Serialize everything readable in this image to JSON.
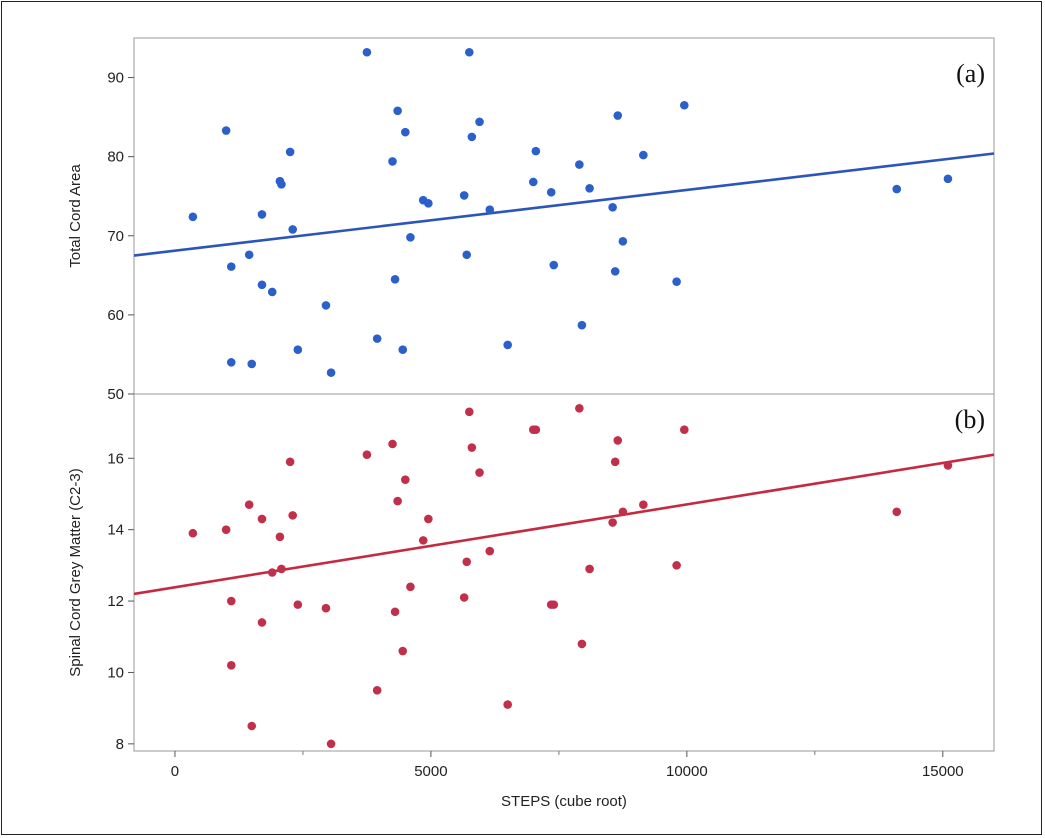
{
  "chart_data": [
    {
      "type": "scatter",
      "panel_label": "(a)",
      "ylabel": "Total Cord Area",
      "xlabel": "",
      "xlim": [
        -800,
        16000
      ],
      "ylim": [
        50,
        95
      ],
      "yticks": [
        50,
        60,
        70,
        80,
        90
      ],
      "marker_color": "#2b5fc9",
      "line_color": "#2b55b8",
      "fit": {
        "x": [
          -800,
          16000
        ],
        "y": [
          67.5,
          80.4
        ]
      },
      "x": [
        350,
        1000,
        1100,
        1100,
        1450,
        1500,
        1700,
        1700,
        1900,
        2050,
        2080,
        2250,
        2300,
        2400,
        2950,
        3050,
        3750,
        3950,
        4250,
        4300,
        4350,
        4450,
        4500,
        4600,
        4850,
        4950,
        5650,
        5700,
        5750,
        5800,
        5950,
        6150,
        6500,
        7000,
        7050,
        7350,
        7400,
        7900,
        7950,
        8100,
        8550,
        8600,
        8650,
        8750,
        9150,
        9800,
        9950,
        14100,
        15100
      ],
      "y": [
        72.4,
        83.3,
        66.1,
        54.0,
        67.6,
        53.8,
        72.7,
        63.8,
        62.9,
        76.9,
        76.5,
        80.6,
        70.8,
        55.6,
        61.2,
        52.7,
        93.2,
        57.0,
        79.4,
        64.5,
        85.8,
        55.6,
        83.1,
        69.8,
        74.5,
        74.1,
        75.1,
        67.6,
        93.2,
        82.5,
        84.4,
        73.3,
        56.2,
        76.8,
        80.7,
        75.5,
        66.3,
        79.0,
        58.7,
        76.0,
        73.6,
        65.5,
        85.2,
        69.3,
        80.2,
        64.2,
        86.5,
        75.9,
        77.2
      ]
    },
    {
      "type": "scatter",
      "panel_label": "(b)",
      "ylabel": "Spinal Cord Grey Matter (C2-3)",
      "xlabel": "STEPS (cube root)",
      "xlim": [
        -800,
        16000
      ],
      "ylim": [
        7.8,
        17.8
      ],
      "yticks": [
        8,
        10,
        12,
        14,
        16
      ],
      "xticks": [
        0,
        5000,
        10000,
        15000
      ],
      "marker_color": "#c0304a",
      "line_color": "#c42a42",
      "fit": {
        "x": [
          -800,
          16000
        ],
        "y": [
          12.2,
          16.1
        ]
      },
      "x": [
        350,
        1000,
        1100,
        1100,
        1450,
        1500,
        1700,
        1700,
        1900,
        2050,
        2080,
        2250,
        2300,
        2400,
        2950,
        3050,
        3750,
        3950,
        4250,
        4300,
        4350,
        4450,
        4500,
        4600,
        4850,
        4950,
        5650,
        5700,
        5750,
        5800,
        5950,
        6150,
        6500,
        7000,
        7050,
        7350,
        7400,
        7900,
        7950,
        8100,
        8550,
        8600,
        8650,
        8750,
        9150,
        9800,
        9950,
        14100,
        15100
      ],
      "y": [
        13.9,
        14.0,
        12.0,
        10.2,
        14.7,
        8.5,
        14.3,
        11.4,
        12.8,
        13.8,
        12.9,
        15.9,
        14.4,
        11.9,
        11.8,
        8.0,
        16.1,
        9.5,
        16.4,
        11.7,
        14.8,
        10.6,
        15.4,
        12.4,
        13.7,
        14.3,
        12.1,
        13.1,
        17.3,
        16.3,
        15.6,
        13.4,
        9.1,
        16.8,
        16.8,
        11.9,
        11.9,
        17.4,
        10.8,
        12.9,
        14.2,
        15.9,
        16.5,
        14.5,
        14.7,
        13.0,
        16.8,
        14.5,
        15.8
      ]
    }
  ]
}
